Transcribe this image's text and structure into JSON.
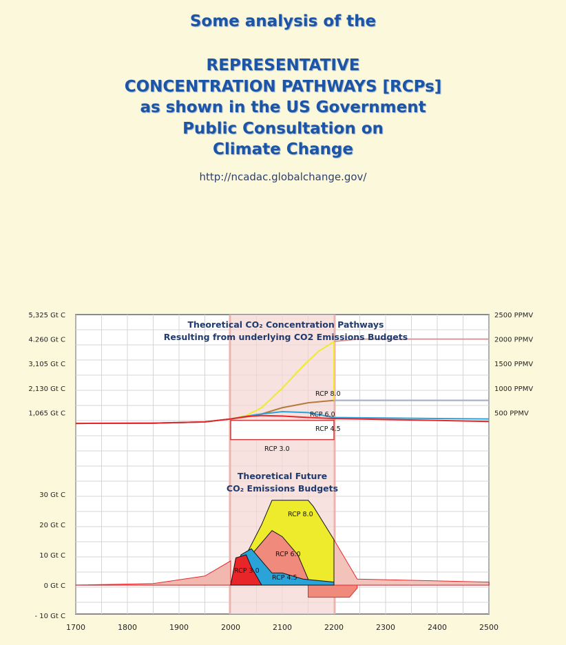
{
  "header": {
    "line1": "Some analysis of the",
    "line2": "REPRESENTATIVE",
    "line3": "CONCENTRATION PATHWAYS [RCPs]",
    "line4": "as shown in the US Government",
    "line5": "Public Consultation on",
    "line6": "Climate Change",
    "url": "http://ncadac.globalchange.gov/"
  },
  "colors": {
    "background": "#fbf8dc",
    "title": "#1d55a6",
    "rcp3": "#e8262a",
    "rcp45": "#2aa3d9",
    "rcp6": "#f08a7c",
    "rcp8": "#eeea2c",
    "highlight_band": "#f3d6d2"
  },
  "chart_data": [
    {
      "type": "line",
      "title": "Theoretical CO₂ Concentration Pathways",
      "subtitle": "Resulting from underlying CO2 Emissions Budgets",
      "x_ticks": [
        "1700",
        "1800",
        "1900",
        "2000",
        "2100",
        "2200",
        "2300",
        "2400",
        "2500"
      ],
      "y_left_ticks": [
        "5,325 Gt C",
        "4.260 Gt C",
        "3,105 Gt C",
        "2,130 Gt C",
        "1,065 Gt C"
      ],
      "y_right_ticks": [
        "2500 PPMV",
        "2000 PPMV",
        "1500 PPMV",
        "1000 PPMV",
        "500 PPMV"
      ],
      "ylim_ppmv": [
        0,
        2500
      ],
      "xlim": [
        1700,
        2500
      ],
      "series": [
        {
          "name": "RCP 8.0",
          "color": "#eeea2c",
          "x": [
            1700,
            1850,
            1950,
            2000,
            2030,
            2060,
            2100,
            2140,
            2170,
            2200
          ],
          "y": [
            280,
            285,
            310,
            370,
            440,
            600,
            1000,
            1450,
            1750,
            1950
          ]
        },
        {
          "name": "RCP 6.0",
          "color": "#b5793e",
          "x": [
            1700,
            1850,
            1950,
            2000,
            2050,
            2100,
            2150,
            2200,
            2300,
            2400,
            2500
          ],
          "y": [
            280,
            285,
            310,
            370,
            440,
            600,
            700,
            750,
            750,
            750,
            750
          ]
        },
        {
          "name": "RCP 4.5",
          "color": "#2aa3d9",
          "x": [
            1700,
            1850,
            1950,
            2000,
            2050,
            2100,
            2150,
            2200,
            2300,
            2400,
            2500
          ],
          "y": [
            280,
            285,
            310,
            370,
            460,
            520,
            500,
            400,
            390,
            380,
            370
          ]
        },
        {
          "name": "RCP 3.0",
          "color": "#e8262a",
          "x": [
            1700,
            1850,
            1950,
            2000,
            2030,
            2060,
            2100,
            2150,
            2200,
            2300,
            2400,
            2500
          ],
          "y": [
            280,
            285,
            310,
            370,
            420,
            440,
            430,
            400,
            380,
            360,
            340,
            320
          ]
        }
      ],
      "annotations": [
        "RCP 8.0",
        "RCP 6.0",
        "RCP 4.5",
        "RCP 3.0"
      ]
    },
    {
      "type": "area",
      "title": "Theoretical Future",
      "subtitle": "CO₂ Emissions Budgets",
      "y_ticks": [
        "30 Gt C",
        "20 Gt C",
        "10 Gt C",
        "0 Gt C",
        "- 10 Gt C"
      ],
      "ylim": [
        -10,
        35
      ],
      "series": [
        {
          "name": "RCP 8.0",
          "color": "#eeea2c",
          "x": [
            2000,
            2060,
            2080,
            2150,
            2160,
            2200,
            2200
          ],
          "y": [
            0,
            20,
            28,
            28,
            26,
            15,
            0
          ]
        },
        {
          "name": "RCP 6.0",
          "color": "#f08a7c",
          "x": [
            2000,
            2040,
            2080,
            2100,
            2130,
            2150,
            2150
          ],
          "y": [
            0,
            10,
            18,
            16,
            10,
            2,
            0
          ]
        },
        {
          "name": "RCP 4.5",
          "color": "#2aa3d9",
          "x": [
            2000,
            2020,
            2040,
            2060,
            2080,
            2100,
            2140,
            2200,
            2200
          ],
          "y": [
            0,
            10,
            12,
            8,
            4,
            4,
            2,
            1,
            0
          ]
        },
        {
          "name": "RCP 3.0",
          "color": "#e8262a",
          "x": [
            2000,
            2010,
            2030,
            2040,
            2050,
            2060
          ],
          "y": [
            0,
            9,
            10,
            6,
            3,
            0
          ]
        }
      ],
      "annotations": [
        "RCP 8.0",
        "RCP 6.0",
        "RCP 4.5",
        "RCP 3.0"
      ]
    }
  ]
}
